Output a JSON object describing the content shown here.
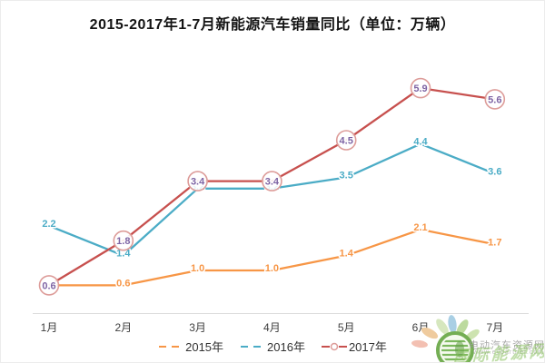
{
  "title": "2015-2017年1-7月新能源汽车销量同比（单位：万辆）",
  "chart_data": {
    "type": "line",
    "categories": [
      "1月",
      "2月",
      "3月",
      "4月",
      "5月",
      "6月",
      "7月"
    ],
    "series": [
      {
        "name": "2015年",
        "color": "#F79646",
        "label_color": "#F79646",
        "legend_icon": "dashed",
        "marker": "none",
        "values": [
          0.6,
          0.6,
          1.0,
          1.0,
          1.4,
          2.1,
          1.7
        ],
        "hide_label_indices": [
          0
        ]
      },
      {
        "name": "2016年",
        "color": "#4BACC6",
        "label_color": "#4BACC6",
        "legend_icon": "dashed",
        "marker": "none",
        "values": [
          2.2,
          1.4,
          3.2,
          3.2,
          3.5,
          4.4,
          3.6
        ],
        "hide_label_indices": []
      },
      {
        "name": "2017年",
        "color": "#C7504E",
        "label_color": "#7E64A4",
        "legend_icon": "line-circle",
        "marker": "circle",
        "marker_fill": "rgba(255,255,255,0.85)",
        "marker_stroke": "#DD9C99",
        "values": [
          0.6,
          1.8,
          3.4,
          3.4,
          4.5,
          5.9,
          5.6
        ],
        "hide_label_indices": []
      }
    ],
    "xlabel": "",
    "ylabel": "",
    "ylim": [
      0,
      6.5
    ],
    "grid": false,
    "y_axis_visible": false,
    "legend_position": "bottom-center",
    "value_label_format": "one-decimal"
  },
  "axis": {
    "line_color": "#dcdcdc",
    "month_label_color": "#3f3f3f"
  },
  "watermark": {
    "site_name": "电动汽车资源网",
    "site_url": "www.evpartner.com",
    "brand_text": "国际能源网"
  }
}
